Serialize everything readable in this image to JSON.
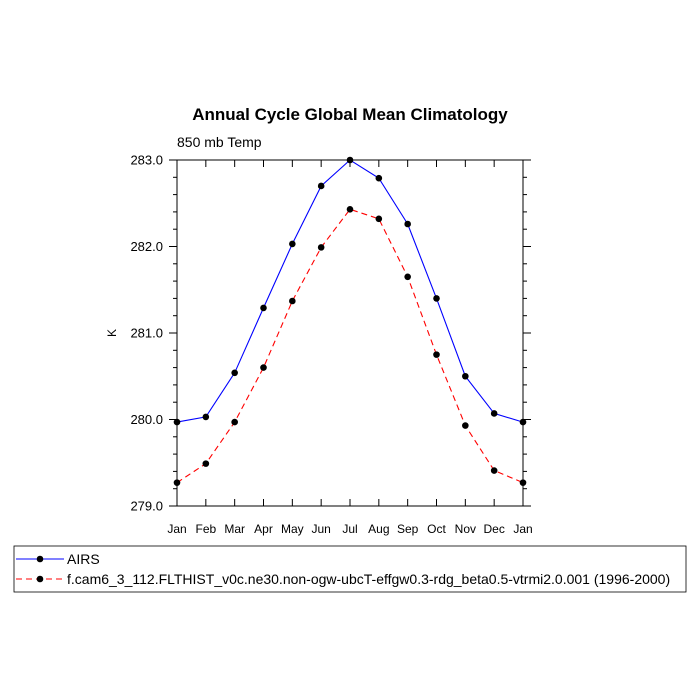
{
  "chart_data": {
    "type": "line",
    "title": "Annual Cycle Global Mean Climatology",
    "subtitle": "850 mb Temp",
    "xlabel": "",
    "ylabel": "K",
    "categories": [
      "Jan",
      "Feb",
      "Mar",
      "Apr",
      "May",
      "Jun",
      "Jul",
      "Aug",
      "Sep",
      "Oct",
      "Nov",
      "Dec",
      "Jan"
    ],
    "ylim": [
      279.0,
      283.0
    ],
    "yticks": [
      {
        "value": 279.0,
        "label": "279.0"
      },
      {
        "value": 280.0,
        "label": "280.0"
      },
      {
        "value": 281.0,
        "label": "281.0"
      },
      {
        "value": 282.0,
        "label": "282.0"
      },
      {
        "value": 283.0,
        "label": "283.0"
      }
    ],
    "legend_position": "bottom",
    "series": [
      {
        "name": "AIRS",
        "color": "#0000ff",
        "dash": "solid",
        "values": [
          279.97,
          280.03,
          280.54,
          281.29,
          282.03,
          282.7,
          283.0,
          282.79,
          282.26,
          281.4,
          280.5,
          280.07,
          279.97
        ]
      },
      {
        "name": "f.cam6_3_112.FLTHIST_v0c.ne30.non-ogw-ubcT-effgw0.3-rdg_beta0.5-vtrmi2.0.001 (1996-2000)",
        "color": "#ff0000",
        "dash": "dashed",
        "values": [
          279.27,
          279.49,
          279.97,
          280.6,
          281.37,
          281.99,
          282.43,
          282.32,
          281.65,
          280.75,
          279.93,
          279.41,
          279.27
        ]
      }
    ]
  }
}
